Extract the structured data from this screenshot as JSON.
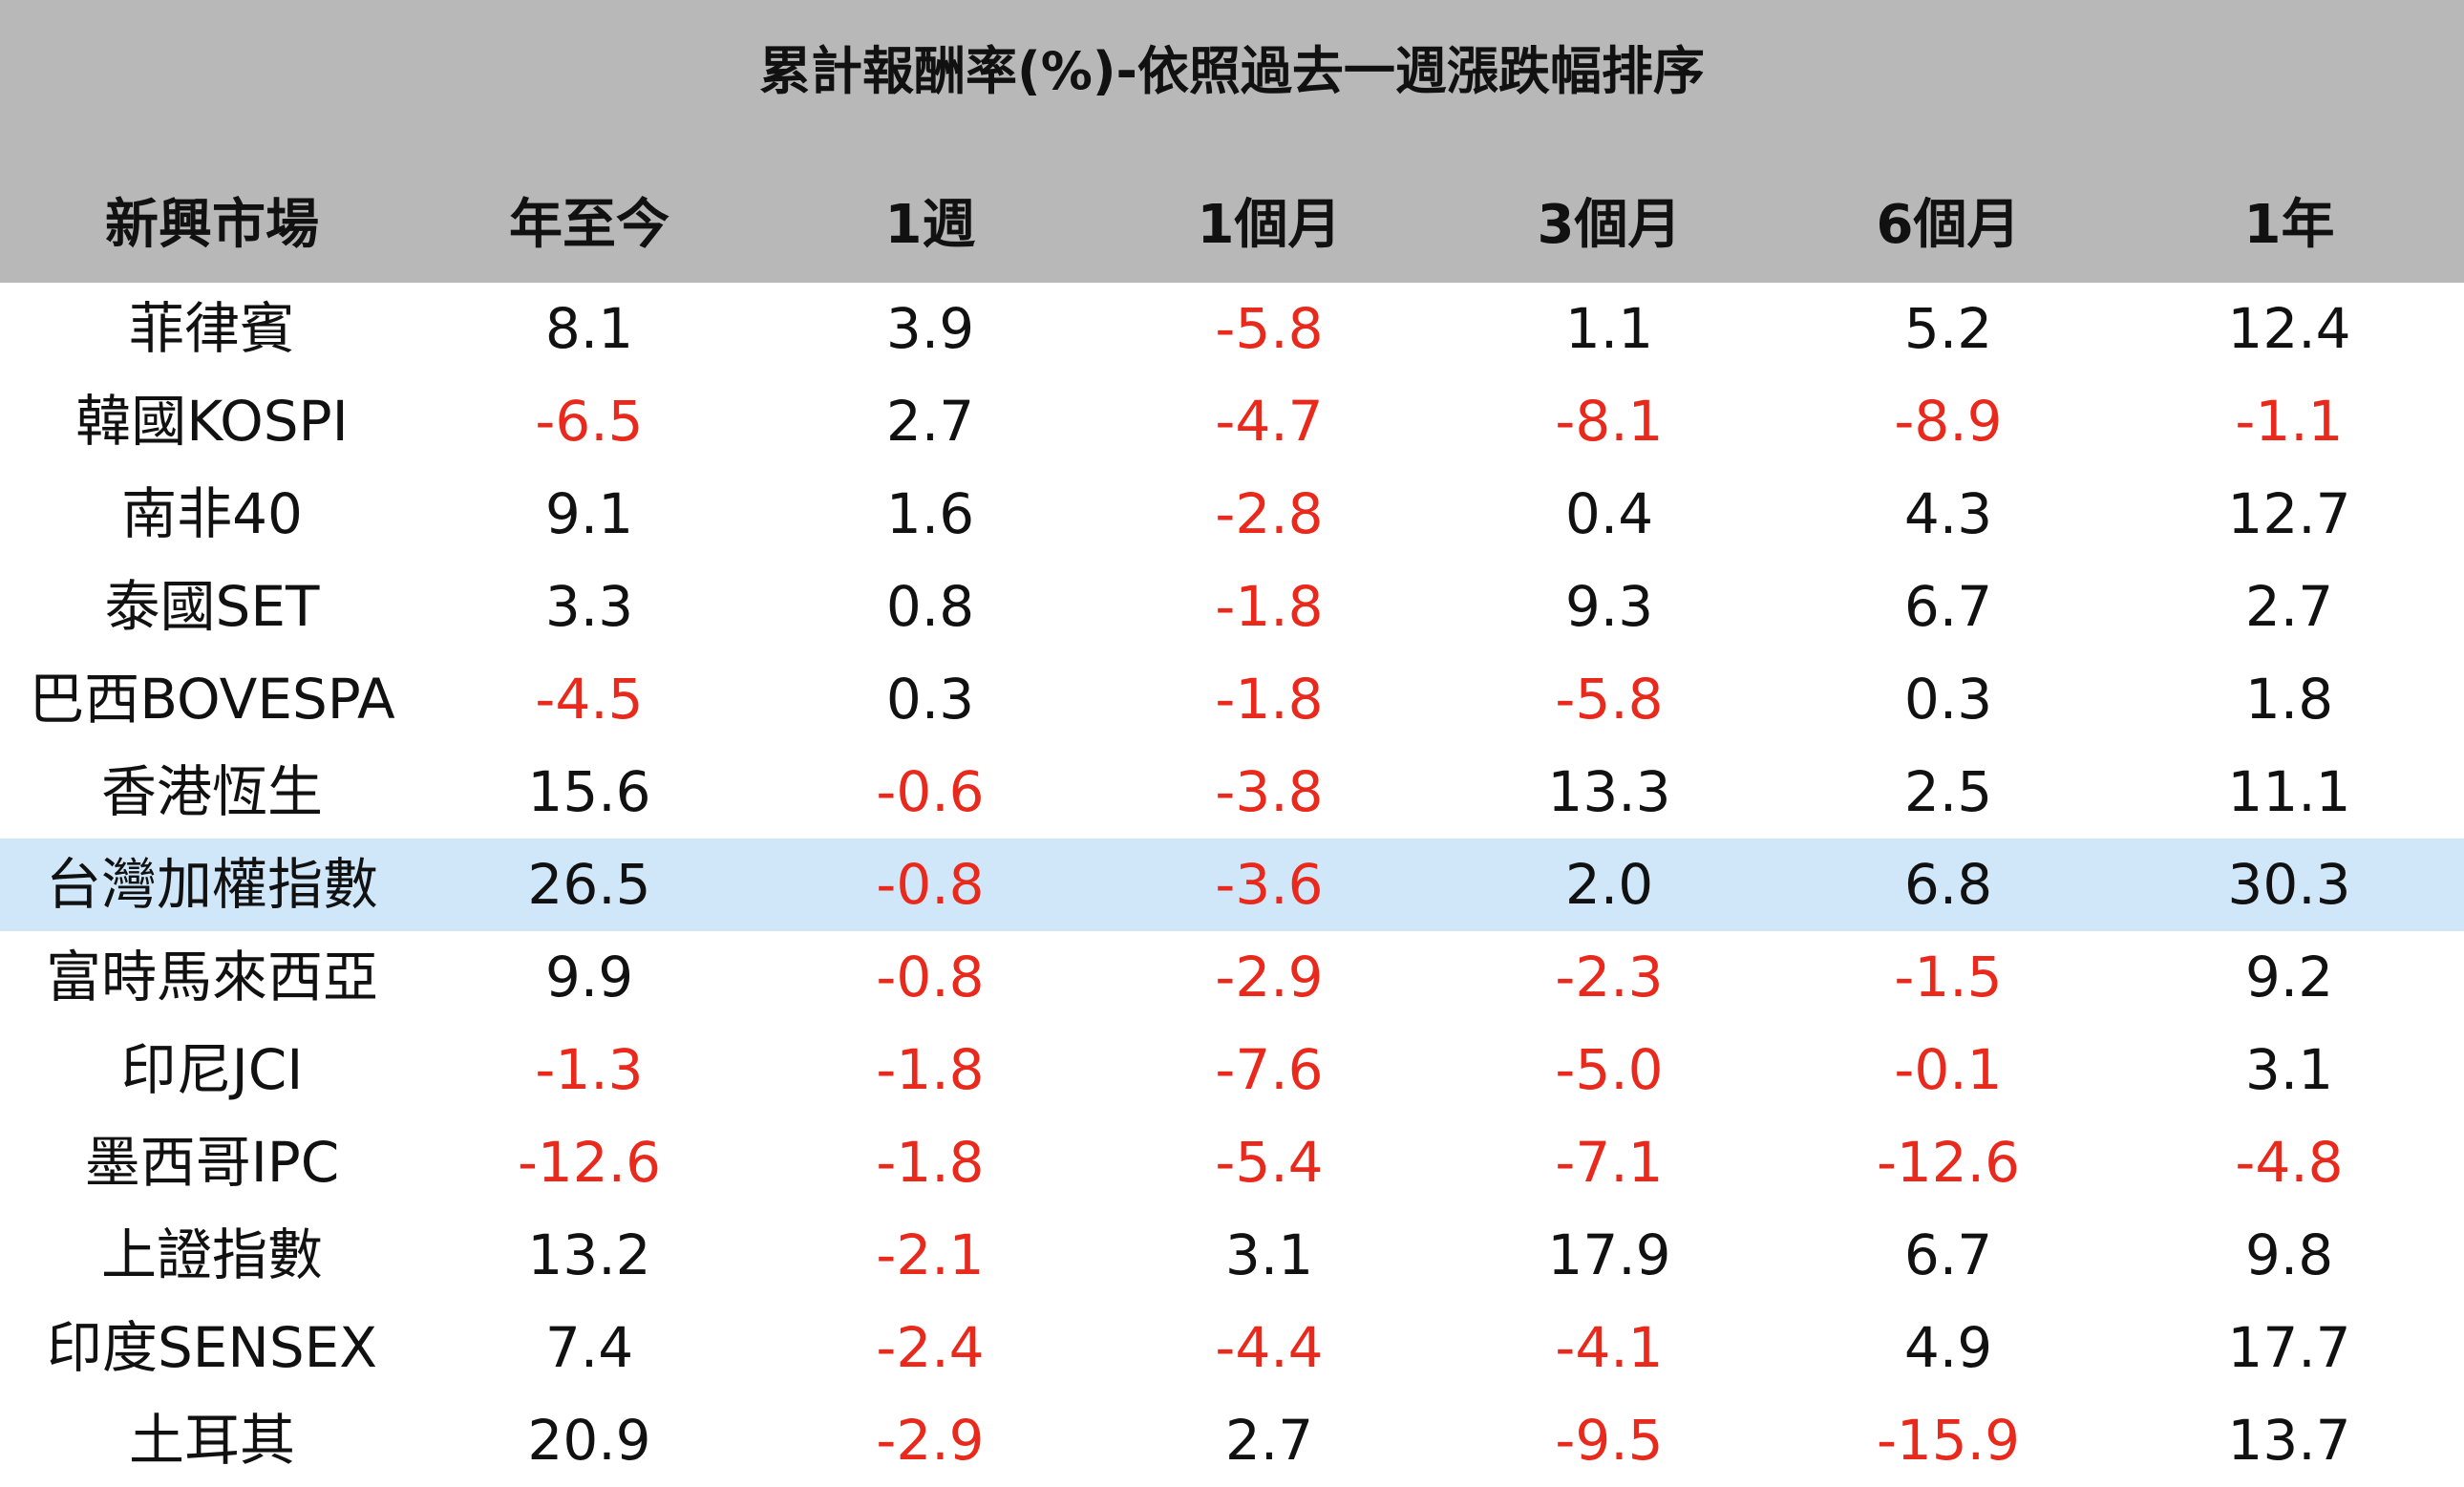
{
  "title": "累計報酬率(%)-依照過去一週漲跌幅排序",
  "columns": [
    "新興市場",
    "年至今",
    "1週",
    "1個月",
    "3個月",
    "6個月",
    "1年"
  ],
  "highlight_row": "台灣加權指數",
  "colors": {
    "header_bg": "#b8b8b8",
    "negative": "#e8291c",
    "highlight": "#cfe7f9"
  },
  "rows": [
    [
      "菲律賓",
      "8.1",
      "3.9",
      "-5.8",
      "1.1",
      "5.2",
      "12.4"
    ],
    [
      "韓國KOSPI",
      "-6.5",
      "2.7",
      "-4.7",
      "-8.1",
      "-8.9",
      "-1.1"
    ],
    [
      "南非40",
      "9.1",
      "1.6",
      "-2.8",
      "0.4",
      "4.3",
      "12.7"
    ],
    [
      "泰國SET",
      "3.3",
      "0.8",
      "-1.8",
      "9.3",
      "6.7",
      "2.7"
    ],
    [
      "巴西BOVESPA",
      "-4.5",
      "0.3",
      "-1.8",
      "-5.8",
      "0.3",
      "1.8"
    ],
    [
      "香港恆生",
      "15.6",
      "-0.6",
      "-3.8",
      "13.3",
      "2.5",
      "11.1"
    ],
    [
      "台灣加權指數",
      "26.5",
      "-0.8",
      "-3.6",
      "2.0",
      "6.8",
      "30.3"
    ],
    [
      "富時馬來西亞",
      "9.9",
      "-0.8",
      "-2.9",
      "-2.3",
      "-1.5",
      "9.2"
    ],
    [
      "印尼JCI",
      "-1.3",
      "-1.8",
      "-7.6",
      "-5.0",
      "-0.1",
      "3.1"
    ],
    [
      "墨西哥IPC",
      "-12.6",
      "-1.8",
      "-5.4",
      "-7.1",
      "-12.6",
      "-4.8"
    ],
    [
      "上證指數",
      "13.2",
      "-2.1",
      "3.1",
      "17.9",
      "6.7",
      "9.8"
    ],
    [
      "印度SENSEX",
      "7.4",
      "-2.4",
      "-4.4",
      "-4.1",
      "4.9",
      "17.7"
    ],
    [
      "土耳其",
      "20.9",
      "-2.9",
      "2.7",
      "-9.5",
      "-15.9",
      "13.7"
    ]
  ]
}
